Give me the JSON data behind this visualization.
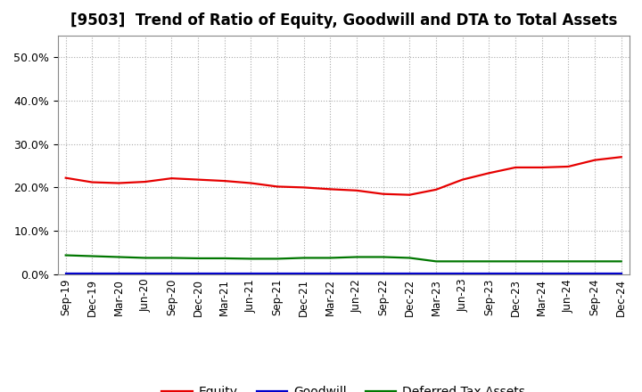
{
  "title": "[9503]  Trend of Ratio of Equity, Goodwill and DTA to Total Assets",
  "x_labels": [
    "Sep-19",
    "Dec-19",
    "Mar-20",
    "Jun-20",
    "Sep-20",
    "Dec-20",
    "Mar-21",
    "Jun-21",
    "Sep-21",
    "Dec-21",
    "Mar-22",
    "Jun-22",
    "Sep-22",
    "Dec-22",
    "Mar-23",
    "Jun-23",
    "Sep-23",
    "Dec-23",
    "Mar-24",
    "Jun-24",
    "Sep-24",
    "Dec-24"
  ],
  "equity": [
    0.222,
    0.212,
    0.21,
    0.213,
    0.221,
    0.218,
    0.215,
    0.21,
    0.202,
    0.2,
    0.196,
    0.193,
    0.185,
    0.183,
    0.195,
    0.218,
    0.233,
    0.246,
    0.246,
    0.248,
    0.263,
    0.27
  ],
  "goodwill": [
    0.002,
    0.002,
    0.002,
    0.002,
    0.002,
    0.002,
    0.002,
    0.002,
    0.002,
    0.002,
    0.002,
    0.002,
    0.002,
    0.002,
    0.002,
    0.002,
    0.002,
    0.002,
    0.002,
    0.002,
    0.002,
    0.002
  ],
  "dta": [
    0.044,
    0.042,
    0.04,
    0.038,
    0.038,
    0.037,
    0.037,
    0.036,
    0.036,
    0.038,
    0.038,
    0.04,
    0.04,
    0.038,
    0.03,
    0.03,
    0.03,
    0.03,
    0.03,
    0.03,
    0.03,
    0.03
  ],
  "equity_color": "#e60000",
  "goodwill_color": "#0000cc",
  "dta_color": "#007700",
  "ylim": [
    0.0,
    0.55
  ],
  "yticks": [
    0.0,
    0.1,
    0.2,
    0.3,
    0.4,
    0.5
  ],
  "background_color": "#ffffff",
  "grid_color": "#aaaaaa",
  "title_fontsize": 12,
  "legend_labels": [
    "Equity",
    "Goodwill",
    "Deferred Tax Assets"
  ]
}
